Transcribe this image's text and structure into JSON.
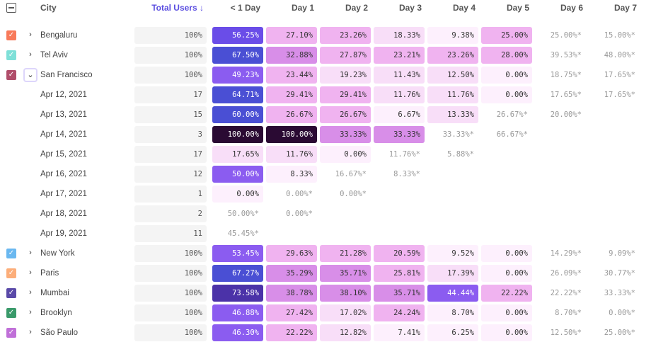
{
  "header": {
    "city": "City",
    "total_users": "Total Users ↓",
    "columns": [
      "< 1 Day",
      "Day 1",
      "Day 2",
      "Day 3",
      "Day 4",
      "Day 5",
      "Day 6",
      "Day 7"
    ]
  },
  "accent": "#5b4ee0",
  "rows": [
    {
      "type": "city",
      "label": "Bengaluru",
      "color": "#f87a5a",
      "expanded": false,
      "total": "100%",
      "cells": [
        "56.25%",
        "27.10%",
        "23.26%",
        "18.33%",
        "9.38%",
        "25.00%",
        "25.00%*",
        "15.00%*"
      ]
    },
    {
      "type": "city",
      "label": "Tel Aviv",
      "color": "#7ee0d8",
      "expanded": false,
      "total": "100%",
      "cells": [
        "67.50%",
        "32.88%",
        "27.87%",
        "23.21%",
        "23.26%",
        "28.00%",
        "39.53%*",
        "48.00%*"
      ]
    },
    {
      "type": "city",
      "label": "San Francisco",
      "color": "#b04d6a",
      "expanded": true,
      "total": "100%",
      "cells": [
        "49.23%",
        "23.44%",
        "19.23%",
        "11.43%",
        "12.50%",
        "0.00%",
        "18.75%*",
        "17.65%*"
      ]
    },
    {
      "type": "date",
      "label": "Apr 12, 2021",
      "total": "17",
      "cells": [
        "64.71%",
        "29.41%",
        "29.41%",
        "11.76%",
        "11.76%",
        "0.00%",
        "17.65%*",
        "17.65%*"
      ]
    },
    {
      "type": "date",
      "label": "Apr 13, 2021",
      "total": "15",
      "cells": [
        "60.00%",
        "26.67%",
        "26.67%",
        "6.67%",
        "13.33%",
        "26.67%*",
        "20.00%*"
      ]
    },
    {
      "type": "date",
      "label": "Apr 14, 2021",
      "total": "3",
      "cells": [
        "100.00%",
        "100.00%",
        "33.33%",
        "33.33%",
        "33.33%*",
        "66.67%*"
      ]
    },
    {
      "type": "date",
      "label": "Apr 15, 2021",
      "total": "17",
      "cells": [
        "17.65%",
        "11.76%",
        "0.00%",
        "11.76%*",
        "5.88%*"
      ]
    },
    {
      "type": "date",
      "label": "Apr 16, 2021",
      "total": "12",
      "cells": [
        "50.00%",
        "8.33%",
        "16.67%*",
        "8.33%*"
      ]
    },
    {
      "type": "date",
      "label": "Apr 17, 2021",
      "total": "1",
      "cells": [
        "0.00%",
        "0.00%*",
        "0.00%*"
      ]
    },
    {
      "type": "date",
      "label": "Apr 18, 2021",
      "total": "2",
      "cells": [
        "50.00%*",
        "0.00%*"
      ]
    },
    {
      "type": "date",
      "label": "Apr 19, 2021",
      "total": "11",
      "cells": [
        "45.45%*"
      ]
    },
    {
      "type": "city",
      "label": "New York",
      "color": "#6ab8f0",
      "expanded": false,
      "total": "100%",
      "cells": [
        "53.45%",
        "29.63%",
        "21.28%",
        "20.59%",
        "9.52%",
        "0.00%",
        "14.29%*",
        "9.09%*"
      ]
    },
    {
      "type": "city",
      "label": "Paris",
      "color": "#fcae7a",
      "expanded": false,
      "total": "100%",
      "cells": [
        "67.27%",
        "35.29%",
        "35.71%",
        "25.81%",
        "17.39%",
        "0.00%",
        "26.09%*",
        "30.77%*"
      ]
    },
    {
      "type": "city",
      "label": "Mumbai",
      "color": "#5a4aa8",
      "expanded": false,
      "total": "100%",
      "cells": [
        "73.58%",
        "38.78%",
        "38.10%",
        "35.71%",
        "44.44%",
        "22.22%",
        "22.22%*",
        "33.33%*"
      ]
    },
    {
      "type": "city",
      "label": "Brooklyn",
      "color": "#3a9a6a",
      "expanded": false,
      "total": "100%",
      "cells": [
        "46.88%",
        "27.42%",
        "17.02%",
        "24.24%",
        "8.70%",
        "0.00%",
        "8.70%*",
        "0.00%*"
      ]
    },
    {
      "type": "city",
      "label": "São Paulo",
      "color": "#c070d8",
      "expanded": false,
      "total": "100%",
      "cells": [
        "46.30%",
        "22.22%",
        "12.82%",
        "7.41%",
        "6.25%",
        "0.00%",
        "12.50%*",
        "25.00%*"
      ]
    }
  ]
}
